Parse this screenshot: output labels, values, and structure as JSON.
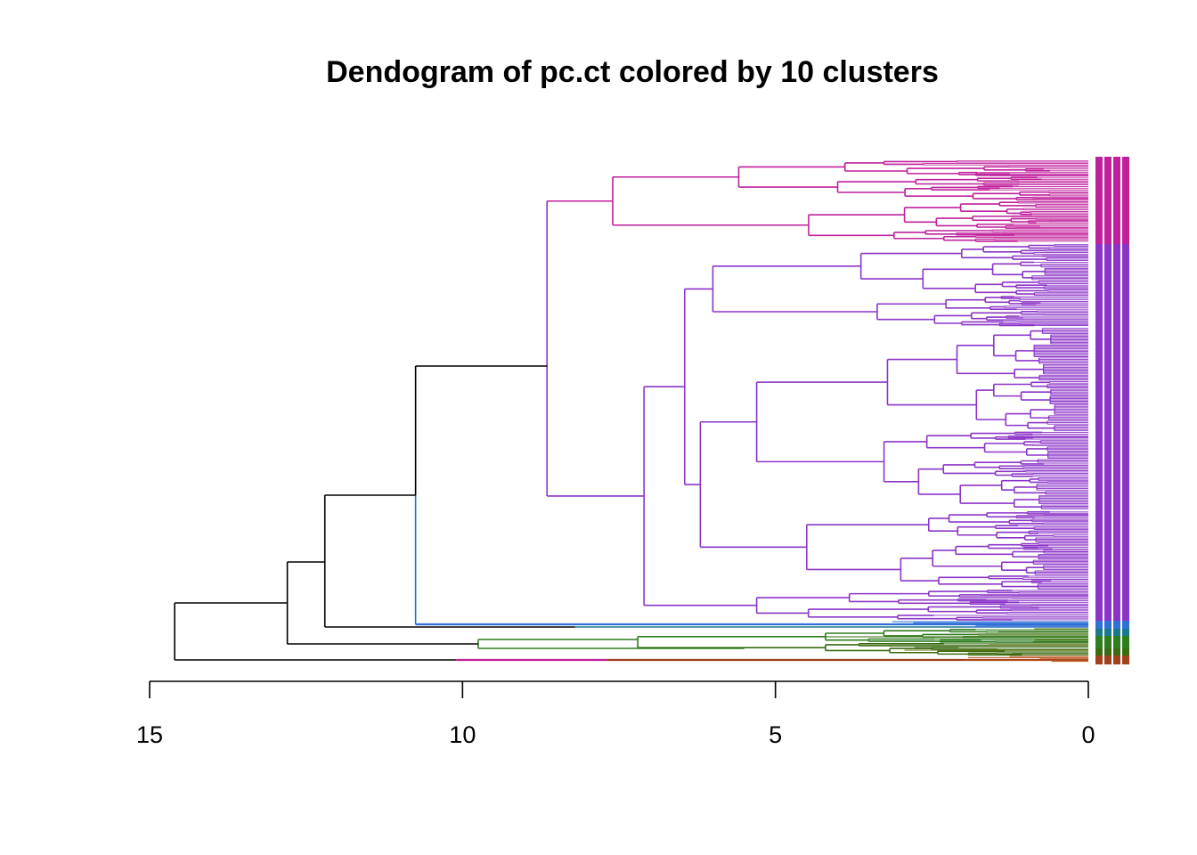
{
  "chart_data": {
    "type": "dendrogram",
    "title": "Dendogram of pc.ct colored by 10 clusters",
    "orientation": "horizontal",
    "xlim": [
      15,
      0
    ],
    "ticks": [
      15,
      10,
      5,
      0
    ],
    "tick_labels": [
      "15",
      "10",
      "5",
      "0"
    ],
    "clusters": 10,
    "colors": {
      "magenta": "#c0209c",
      "purple": "#8b35c8",
      "blue": "#2f6fd6",
      "teal": "#1b7a8a",
      "green": "#2e7d1e",
      "darkgreen": "#3a6b10",
      "olive": "#6b7a1a",
      "brown": "#a0401c",
      "orange": "#b8521a",
      "root": "#000000"
    },
    "merge_heights": {
      "root": 14.6,
      "second": 12.8,
      "third": 12.2,
      "fourth": 10.75,
      "magenta_purple": 8.65,
      "purple_main": 7.1,
      "green_group": 9.75,
      "brown_group": 10.1
    }
  }
}
